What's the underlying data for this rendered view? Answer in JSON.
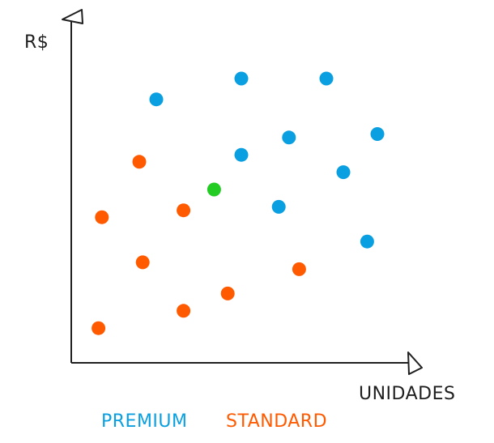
{
  "chart_data": {
    "type": "scatter",
    "xlabel": "UNIDADES",
    "ylabel": "R$",
    "grid": false,
    "legend_placement": "bottom-center",
    "series": [
      {
        "name": "PREMIUM",
        "color": "#0a9fe0",
        "points": [
          {
            "x": 25,
            "y": 76
          },
          {
            "x": 50,
            "y": 82
          },
          {
            "x": 75,
            "y": 82
          },
          {
            "x": 90,
            "y": 66
          },
          {
            "x": 64,
            "y": 65
          },
          {
            "x": 50,
            "y": 60
          },
          {
            "x": 80,
            "y": 55
          },
          {
            "x": 61,
            "y": 45
          },
          {
            "x": 87,
            "y": 35
          }
        ]
      },
      {
        "name": "STANDARD",
        "color": "#ff5a00",
        "points": [
          {
            "x": 20,
            "y": 58
          },
          {
            "x": 9,
            "y": 42
          },
          {
            "x": 33,
            "y": 44
          },
          {
            "x": 21,
            "y": 29
          },
          {
            "x": 67,
            "y": 27
          },
          {
            "x": 46,
            "y": 20
          },
          {
            "x": 33,
            "y": 15
          },
          {
            "x": 8,
            "y": 10
          }
        ]
      },
      {
        "color": "#22cc22",
        "points": [
          {
            "x": 42,
            "y": 50
          }
        ]
      }
    ]
  }
}
